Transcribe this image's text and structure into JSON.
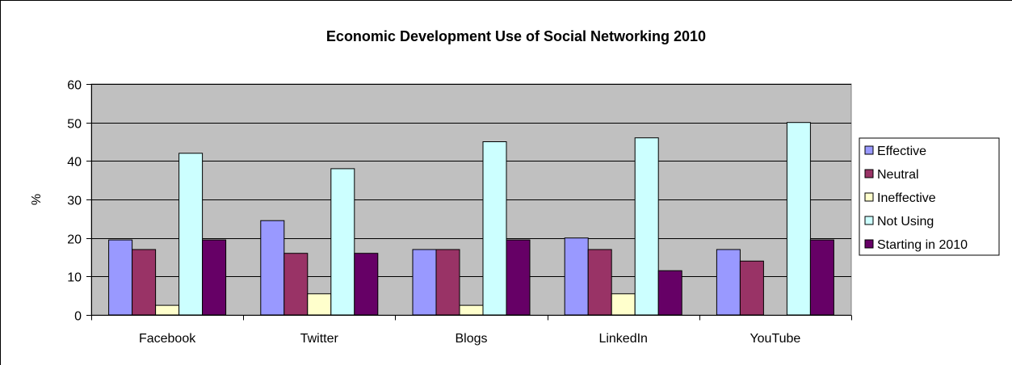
{
  "chart_data": {
    "type": "bar",
    "title": "Economic Development Use of Social Networking 2010",
    "xlabel": "",
    "ylabel": "%",
    "ylim": [
      0,
      60
    ],
    "yticks": [
      0,
      10,
      20,
      30,
      40,
      50,
      60
    ],
    "grid": true,
    "legend_position": "right",
    "categories": [
      "Facebook",
      "Twitter",
      "Blogs",
      "LinkedIn",
      "YouTube"
    ],
    "series": [
      {
        "name": "Effective",
        "color": "#9999ff",
        "values": [
          19.5,
          24.5,
          17,
          20,
          17
        ]
      },
      {
        "name": "Neutral",
        "color": "#993366",
        "values": [
          17,
          16,
          17,
          17,
          14
        ]
      },
      {
        "name": "Ineffective",
        "color": "#ffffcc",
        "values": [
          2.5,
          5.5,
          2.5,
          5.5,
          0
        ]
      },
      {
        "name": "Not Using",
        "color": "#ccffff",
        "values": [
          42,
          38,
          45,
          46,
          50
        ]
      },
      {
        "name": "Starting in 2010",
        "color": "#660066",
        "values": [
          19.5,
          16,
          19.5,
          11.5,
          19.5
        ]
      }
    ],
    "plot_background": "#c0c0c0"
  }
}
